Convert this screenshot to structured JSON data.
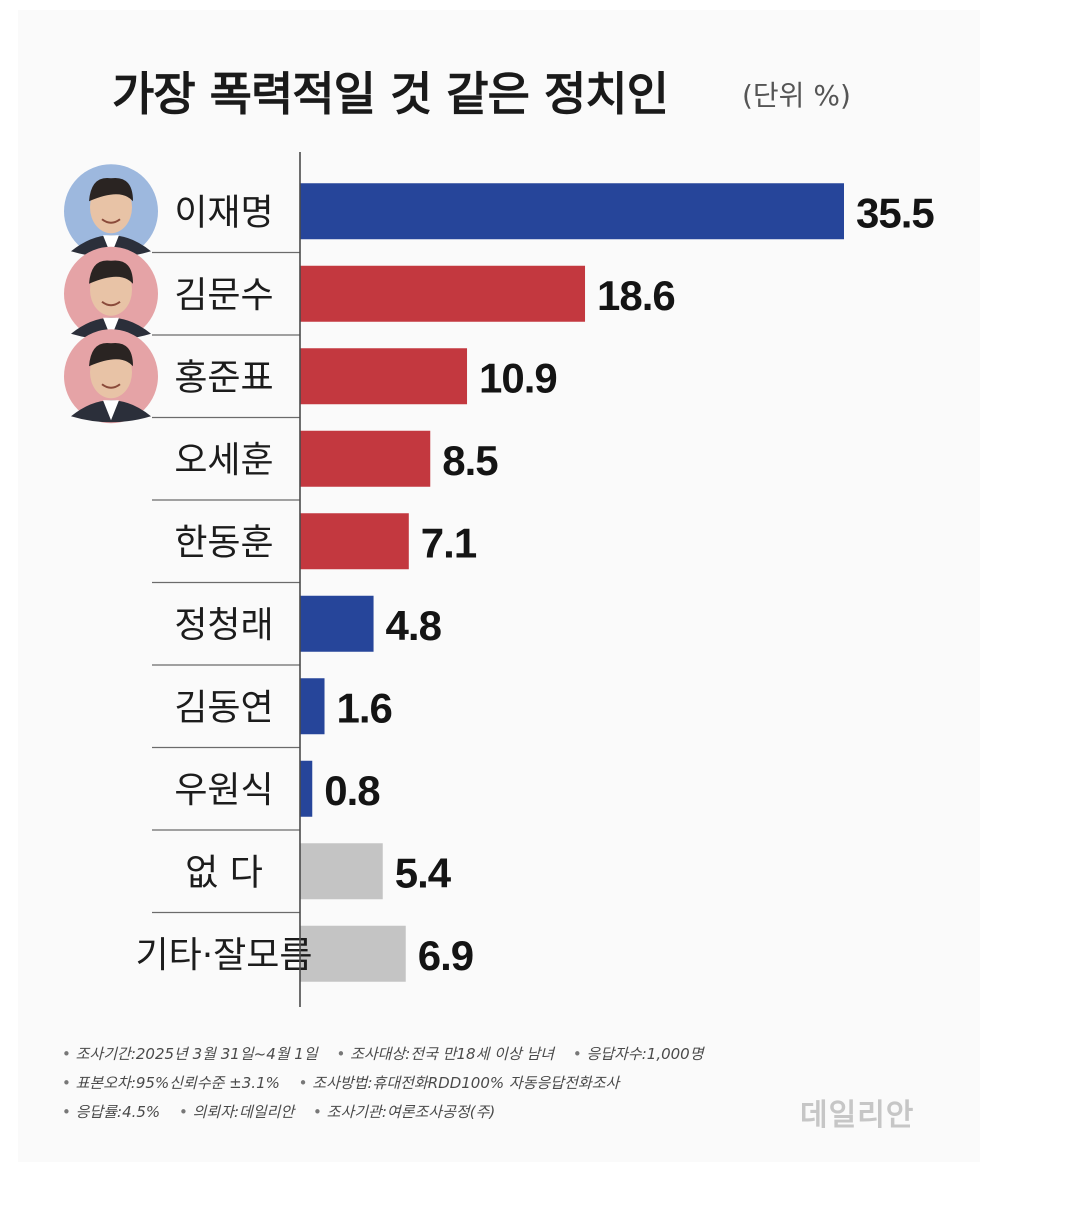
{
  "colors": {
    "blue": "#26459a",
    "red": "#c3383f",
    "gray": "#c4c4c4",
    "avatar_blue_bg": "#9db8de",
    "avatar_red_bg": "#e5a3a6"
  },
  "chart_data": {
    "type": "bar",
    "orientation": "horizontal",
    "title": "가장 폭력적일 것 같은 정치인",
    "unit": "(단위 %)",
    "categories": [
      "이재명",
      "김문수",
      "홍준표",
      "오세훈",
      "한동훈",
      "정청래",
      "김동연",
      "우원식",
      "없  다",
      "기타·잘모름"
    ],
    "values": [
      35.5,
      18.6,
      10.9,
      8.5,
      7.1,
      4.8,
      1.6,
      0.8,
      5.4,
      6.9
    ],
    "value_labels": [
      "35.5",
      "18.6",
      "10.9",
      "8.5",
      "7.1",
      "4.8",
      "1.6",
      "0.8",
      "5.4",
      "6.9"
    ],
    "bar_colors": [
      "blue",
      "red",
      "red",
      "red",
      "red",
      "blue",
      "blue",
      "blue",
      "gray",
      "gray"
    ],
    "avatars": [
      {
        "index": 0,
        "bg": "avatar_blue_bg"
      },
      {
        "index": 1,
        "bg": "avatar_red_bg"
      },
      {
        "index": 2,
        "bg": "avatar_red_bg"
      }
    ],
    "xlim": [
      0,
      35.5
    ],
    "grid": false,
    "legend": "none"
  },
  "notes": {
    "line1": [
      "조사기간:2025년 3월 31일~4월 1일",
      "조사대상:전국 만18세 이상 남녀",
      "응답자수:1,000명"
    ],
    "line2": [
      "표본오차:95%신뢰수준 ±3.1%",
      "조사방법:휴대전화RDD100% 자동응답전화조사"
    ],
    "line3": [
      "응답률:4.5%",
      "의뢰자:데일리안",
      "조사기관:여론조사공정(주)"
    ]
  },
  "source_logo": "데일리안"
}
